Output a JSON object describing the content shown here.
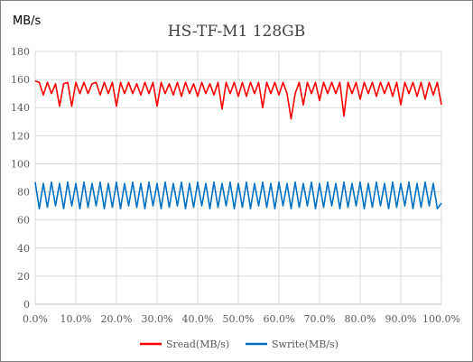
{
  "chart_data": {
    "type": "line",
    "title": "HS-TF-M1 128GB",
    "ylabel": "MB/s",
    "xlabel": "",
    "ylim": [
      0,
      180
    ],
    "yticks": [
      0,
      20,
      40,
      60,
      80,
      100,
      120,
      140,
      160,
      180
    ],
    "xlim": [
      0,
      100
    ],
    "xtick_labels": [
      "0.0%",
      "10.0%",
      "20.0%",
      "30.0%",
      "40.0%",
      "50.0%",
      "60.0%",
      "70.0%",
      "80.0%",
      "90.0%",
      "100.0%"
    ],
    "grid": true,
    "legend_position": "bottom",
    "series": [
      {
        "name": "Sread(MB/s)",
        "color": "#ff0000",
        "x": [
          0,
          1,
          2,
          3,
          4,
          5,
          6,
          7,
          8,
          9,
          10,
          11,
          12,
          13,
          14,
          15,
          16,
          17,
          18,
          19,
          20,
          21,
          22,
          23,
          24,
          25,
          26,
          27,
          28,
          29,
          30,
          31,
          32,
          33,
          34,
          35,
          36,
          37,
          38,
          39,
          40,
          41,
          42,
          43,
          44,
          45,
          46,
          47,
          48,
          49,
          50,
          51,
          52,
          53,
          54,
          55,
          56,
          57,
          58,
          59,
          60,
          61,
          62,
          63,
          64,
          65,
          66,
          67,
          68,
          69,
          70,
          71,
          72,
          73,
          74,
          75,
          76,
          77,
          78,
          79,
          80,
          81,
          82,
          83,
          84,
          85,
          86,
          87,
          88,
          89,
          90,
          91,
          92,
          93,
          94,
          95,
          96,
          97,
          98,
          99,
          100
        ],
        "values": [
          159,
          158,
          149,
          158,
          150,
          157,
          141,
          157,
          158,
          141,
          158,
          150,
          158,
          150,
          157,
          158,
          149,
          158,
          150,
          158,
          141,
          158,
          150,
          158,
          150,
          157,
          149,
          158,
          150,
          158,
          141,
          158,
          150,
          157,
          149,
          158,
          148,
          158,
          150,
          157,
          148,
          158,
          150,
          157,
          149,
          158,
          139,
          158,
          150,
          158,
          148,
          158,
          148,
          158,
          150,
          158,
          140,
          158,
          150,
          158,
          149,
          158,
          150,
          132,
          150,
          158,
          142,
          158,
          150,
          158,
          145,
          158,
          150,
          158,
          150,
          158,
          134,
          158,
          150,
          158,
          146,
          158,
          150,
          158,
          148,
          158,
          150,
          158,
          148,
          158,
          142,
          158,
          150,
          158,
          148,
          158,
          146,
          158,
          149,
          158,
          142
        ]
      },
      {
        "name": "Swrite(MB/s)",
        "color": "#0070c0",
        "x": [
          0,
          1,
          2,
          3,
          4,
          5,
          6,
          7,
          8,
          9,
          10,
          11,
          12,
          13,
          14,
          15,
          16,
          17,
          18,
          19,
          20,
          21,
          22,
          23,
          24,
          25,
          26,
          27,
          28,
          29,
          30,
          31,
          32,
          33,
          34,
          35,
          36,
          37,
          38,
          39,
          40,
          41,
          42,
          43,
          44,
          45,
          46,
          47,
          48,
          49,
          50,
          51,
          52,
          53,
          54,
          55,
          56,
          57,
          58,
          59,
          60,
          61,
          62,
          63,
          64,
          65,
          66,
          67,
          68,
          69,
          70,
          71,
          72,
          73,
          74,
          75,
          76,
          77,
          78,
          79,
          80,
          81,
          82,
          83,
          84,
          85,
          86,
          87,
          88,
          89,
          90,
          91,
          92,
          93,
          94,
          95,
          96,
          97,
          98,
          99,
          100
        ],
        "values": [
          87,
          68,
          86,
          69,
          87,
          70,
          86,
          68,
          87,
          70,
          86,
          68,
          87,
          69,
          86,
          70,
          87,
          68,
          86,
          69,
          87,
          68,
          86,
          70,
          87,
          69,
          86,
          68,
          87,
          70,
          86,
          68,
          87,
          69,
          86,
          70,
          87,
          68,
          86,
          69,
          87,
          70,
          86,
          68,
          87,
          69,
          86,
          70,
          87,
          68,
          86,
          69,
          87,
          68,
          86,
          70,
          87,
          69,
          86,
          68,
          87,
          70,
          86,
          68,
          87,
          69,
          86,
          70,
          87,
          68,
          86,
          69,
          87,
          70,
          86,
          68,
          87,
          69,
          86,
          70,
          87,
          68,
          86,
          69,
          87,
          70,
          86,
          68,
          87,
          69,
          86,
          70,
          87,
          68,
          86,
          69,
          87,
          70,
          86,
          68,
          72
        ]
      }
    ]
  }
}
